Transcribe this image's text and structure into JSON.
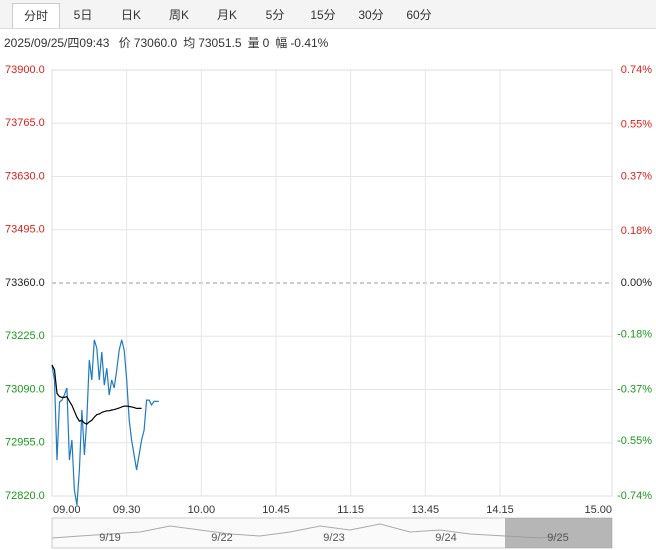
{
  "tabs": [
    "分时",
    "5日",
    "日K",
    "周K",
    "月K",
    "5分",
    "15分",
    "30分",
    "60分"
  ],
  "info": {
    "datetime": "2025/09/25/四09:43",
    "items": [
      {
        "label": "价",
        "value": "73060.0"
      },
      {
        "label": "均",
        "value": "73051.5"
      },
      {
        "label": "量",
        "value": "0"
      },
      {
        "label": "幅",
        "value": "-0.41%"
      }
    ]
  },
  "chart_data": {
    "type": "line",
    "x": [
      0,
      1,
      2,
      3,
      4,
      5,
      6,
      7,
      8,
      9,
      10,
      11,
      12,
      13,
      14,
      15,
      16,
      17,
      18,
      19,
      20,
      21,
      22,
      23,
      24,
      25,
      26,
      27,
      28,
      29,
      30,
      31,
      32,
      33,
      34,
      35,
      36,
      37,
      38,
      39,
      40,
      41,
      42,
      43
    ],
    "series": [
      {
        "color": "#1f7bc1",
        "values": [
          73152,
          73114,
          72911,
          73058,
          73063,
          73076,
          73094,
          72911,
          72962,
          72835,
          72797,
          72886,
          73038,
          72924,
          73013,
          73165,
          73114,
          73216,
          73195,
          73114,
          73185,
          73101,
          73144,
          73076,
          73114,
          73094,
          73139,
          73190,
          73216,
          73190,
          73114,
          73013,
          72962,
          72924,
          72886,
          72924,
          72962,
          72987,
          73063,
          73063,
          73051,
          73060,
          73060,
          73060
        ]
      },
      {
        "color": "#000000",
        "values": [
          73152,
          73140,
          73080,
          73072,
          73070,
          73070,
          73072,
          73060,
          73050,
          73035,
          73020,
          73010,
          73012,
          73005,
          73002,
          73008,
          73012,
          73020,
          73026,
          73028,
          73032,
          73034,
          73036,
          73036,
          73038,
          73039,
          73041,
          73043,
          73046,
          73048,
          73048,
          73047,
          73046,
          73044,
          73042,
          73042,
          73042,
          null,
          null,
          null,
          null,
          null,
          null,
          null
        ]
      }
    ],
    "prev_close": 73360,
    "xlim": [
      0,
      225
    ],
    "xticks": [
      {
        "value": 0,
        "label": "09.00"
      },
      {
        "value": 30,
        "label": "09.30"
      },
      {
        "value": 60,
        "label": "10.00"
      },
      {
        "value": 90,
        "label": "10.45"
      },
      {
        "value": 120,
        "label": "11.15"
      },
      {
        "value": 150,
        "label": "13.45"
      },
      {
        "value": 180,
        "label": "14.15"
      },
      {
        "value": 225,
        "label": "15.00"
      }
    ],
    "ylim": [
      72820,
      73900
    ],
    "yticks": [
      {
        "value": 73900,
        "label": "73900.0"
      },
      {
        "value": 73765,
        "label": "73765.0"
      },
      {
        "value": 73630,
        "label": "73630.0"
      },
      {
        "value": 73495,
        "label": "73495.0"
      },
      {
        "value": 73360,
        "label": "73360.0"
      },
      {
        "value": 73225,
        "label": "73225.0"
      },
      {
        "value": 73090,
        "label": "73090.0"
      },
      {
        "value": 72955,
        "label": "72955.0"
      },
      {
        "value": 72820,
        "label": "72820.0"
      }
    ],
    "y2lim": [
      -0.74,
      0.74
    ],
    "y2ticks": [
      {
        "value": 0.74,
        "label": "0.74%"
      },
      {
        "value": 0.55,
        "label": "0.55%"
      },
      {
        "value": 0.37,
        "label": "0.37%"
      },
      {
        "value": 0.18,
        "label": "0.18%"
      },
      {
        "value": 0,
        "label": "0.00%"
      },
      {
        "value": -0.18,
        "label": "-0.18%"
      },
      {
        "value": -0.37,
        "label": "-0.37%"
      },
      {
        "value": -0.55,
        "label": "-0.55%"
      },
      {
        "value": -0.74,
        "label": "-0.74%"
      }
    ],
    "grid": true,
    "navigator_dates": [
      "9/19",
      "9/22",
      "9/23",
      "9/24",
      "9/25"
    ]
  }
}
